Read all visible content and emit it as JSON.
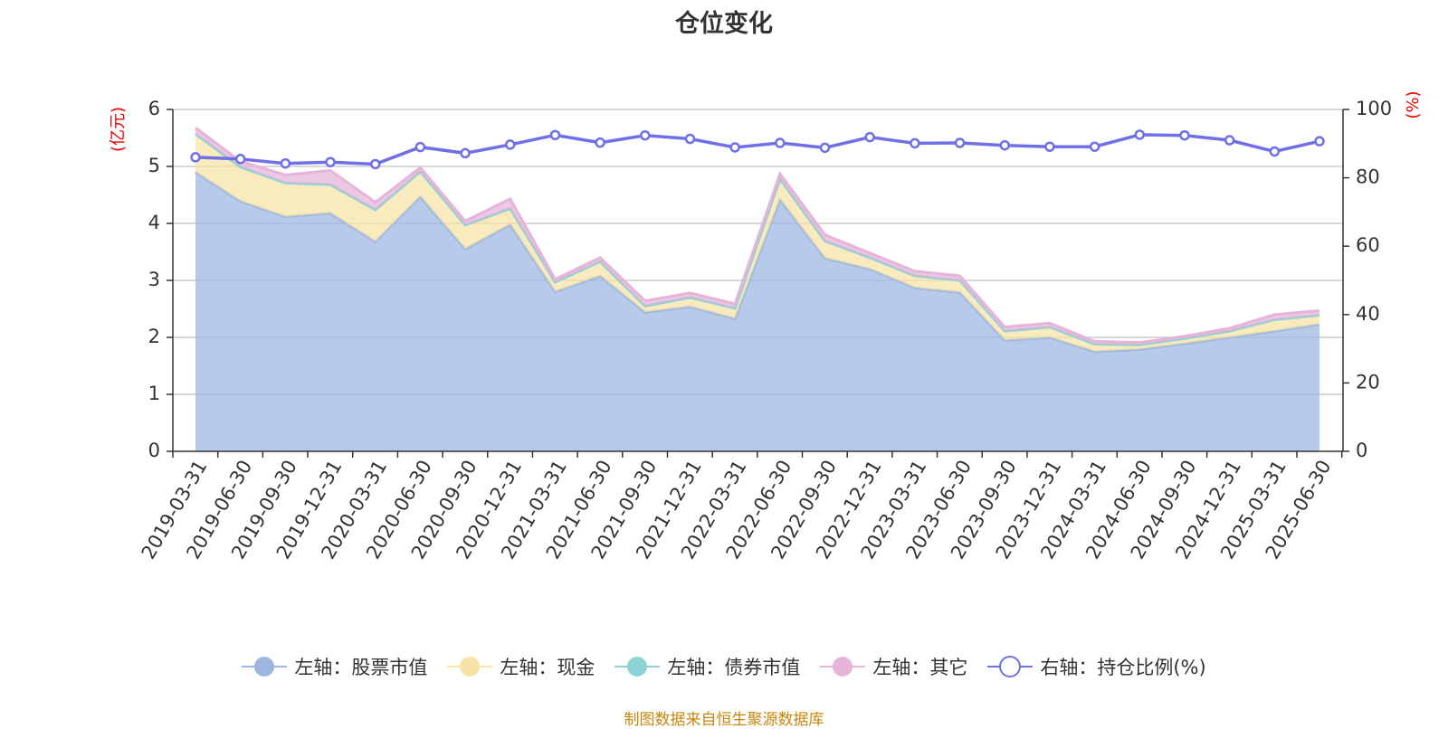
{
  "title": "仓位变化",
  "source_note": "制图数据来自恒生聚源数据库",
  "chart_data": {
    "type": "area",
    "left_axis": {
      "unit": "(亿元)",
      "ylim": [
        0,
        6
      ],
      "ticks": [
        "0",
        "1",
        "2",
        "3",
        "4",
        "5",
        "6"
      ]
    },
    "right_axis": {
      "unit": "(%)",
      "ylim": [
        0,
        100
      ],
      "ticks": [
        "0",
        "20",
        "40",
        "60",
        "80",
        "100"
      ]
    },
    "categories": [
      "2019-03-31",
      "2019-06-30",
      "2019-09-30",
      "2019-12-31",
      "2020-03-31",
      "2020-06-30",
      "2020-09-30",
      "2020-12-31",
      "2021-03-31",
      "2021-06-30",
      "2021-09-30",
      "2021-12-31",
      "2022-03-31",
      "2022-06-30",
      "2022-09-30",
      "2022-12-31",
      "2023-03-31",
      "2023-06-30",
      "2023-09-30",
      "2023-12-31",
      "2024-03-31",
      "2024-06-30",
      "2024-09-30",
      "2024-12-31",
      "2025-03-31",
      "2025-06-30"
    ],
    "series": [
      {
        "name": "左轴：股票市值",
        "axis": "left",
        "kind": "stacked-area",
        "color": "#9cb6e0",
        "values": [
          4.9,
          4.39,
          4.12,
          4.18,
          3.68,
          4.47,
          3.55,
          3.98,
          2.8,
          3.08,
          2.44,
          2.54,
          2.33,
          4.42,
          3.39,
          3.2,
          2.87,
          2.79,
          1.95,
          2.0,
          1.75,
          1.79,
          1.89,
          2.0,
          2.11,
          2.23
        ]
      },
      {
        "name": "左轴：现金",
        "axis": "left",
        "kind": "stacked-area",
        "color": "#f6e3a5",
        "values": [
          0.67,
          0.6,
          0.59,
          0.5,
          0.56,
          0.44,
          0.42,
          0.28,
          0.17,
          0.25,
          0.11,
          0.16,
          0.18,
          0.36,
          0.3,
          0.2,
          0.21,
          0.21,
          0.16,
          0.18,
          0.13,
          0.08,
          0.09,
          0.11,
          0.2,
          0.16
        ]
      },
      {
        "name": "左轴：债券市值",
        "axis": "left",
        "kind": "stacked-area",
        "color": "#8dd3d6",
        "values": [
          0,
          0,
          0,
          0,
          0,
          0,
          0,
          0,
          0,
          0,
          0,
          0,
          0,
          0,
          0,
          0,
          0,
          0,
          0,
          0,
          0,
          0,
          0,
          0,
          0,
          0
        ]
      },
      {
        "name": "左轴：其它",
        "axis": "left",
        "kind": "stacked-area",
        "color": "#e6b3d9",
        "values": [
          0.11,
          0.1,
          0.14,
          0.25,
          0.13,
          0.07,
          0.07,
          0.17,
          0.05,
          0.07,
          0.09,
          0.08,
          0.08,
          0.09,
          0.11,
          0.08,
          0.08,
          0.08,
          0.07,
          0.07,
          0.05,
          0.04,
          0.04,
          0.05,
          0.09,
          0.08
        ]
      },
      {
        "name": "右轴：持仓比例(%)",
        "axis": "right",
        "kind": "line",
        "color": "#6f6fe8",
        "values": [
          86.0,
          85.5,
          84.2,
          84.6,
          84.0,
          89.0,
          87.2,
          89.7,
          92.5,
          90.3,
          92.4,
          91.4,
          88.9,
          90.2,
          88.8,
          91.9,
          90.1,
          90.2,
          89.5,
          89.1,
          89.1,
          92.6,
          92.4,
          91.0,
          87.7,
          90.7
        ]
      }
    ],
    "grid": true,
    "legend_position": "bottom"
  }
}
